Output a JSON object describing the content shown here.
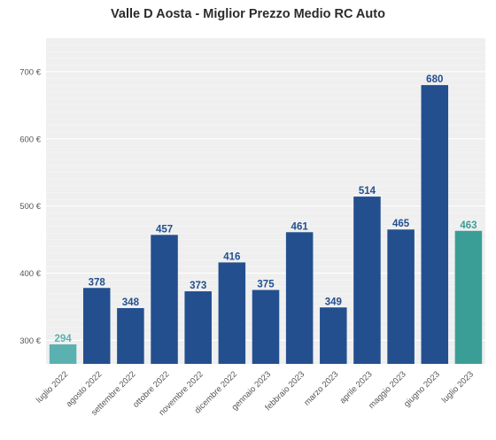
{
  "chart_data": {
    "type": "bar",
    "title": "Valle D Aosta - Miglior Prezzo Medio RC Auto",
    "xlabel": "",
    "ylabel": "",
    "categories": [
      "luglio 2022",
      "agosto 2022",
      "settembre 2022",
      "ottobre 2022",
      "novembre 2022",
      "dicembre 2022",
      "gennaio 2023",
      "febbraio 2023",
      "marzo 2023",
      "aprile 2023",
      "maggio 2023",
      "giugno 2023",
      "luglio 2023"
    ],
    "values": [
      294,
      378,
      348,
      457,
      373,
      416,
      375,
      461,
      349,
      514,
      465,
      680,
      463
    ],
    "data_labels": [
      "294",
      "378",
      "348",
      "457",
      "373",
      "416",
      "375",
      "461",
      "349",
      "514",
      "465",
      "680",
      "463"
    ],
    "ylim": [
      265,
      750
    ],
    "yticks": [
      300,
      400,
      500,
      600,
      700
    ],
    "ytick_labels": [
      "300 €",
      "400 €",
      "500 €",
      "600 €",
      "700 €"
    ],
    "grid": true,
    "colors": {
      "bars": [
        "#5bb1b0",
        "#234f8f",
        "#234f8f",
        "#234f8f",
        "#234f8f",
        "#234f8f",
        "#234f8f",
        "#234f8f",
        "#234f8f",
        "#234f8f",
        "#234f8f",
        "#234f8f",
        "#3a9e96"
      ],
      "labels": [
        "#5bb1b0",
        "#234f8f",
        "#234f8f",
        "#234f8f",
        "#234f8f",
        "#234f8f",
        "#234f8f",
        "#234f8f",
        "#234f8f",
        "#234f8f",
        "#234f8f",
        "#234f8f",
        "#3a9e96"
      ],
      "background": "#efefef",
      "grid": "#ffffff"
    }
  }
}
